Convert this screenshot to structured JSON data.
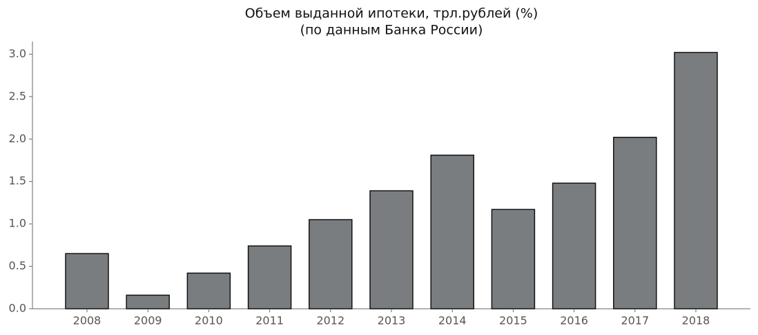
{
  "chart_data": {
    "type": "bar",
    "title": "Объем выданной ипотеки, трл.рублей (%)",
    "subtitle": "(по данным Банка России)",
    "categories": [
      "2008",
      "2009",
      "2010",
      "2011",
      "2012",
      "2013",
      "2014",
      "2015",
      "2016",
      "2017",
      "2018"
    ],
    "values": [
      0.65,
      0.16,
      0.42,
      0.74,
      1.05,
      1.39,
      1.81,
      1.17,
      1.48,
      2.02,
      3.02
    ],
    "color": "#7a7d80",
    "ylim": [
      0,
      3.15
    ],
    "yticks": [
      {
        "value": 0,
        "label": "0.0"
      },
      {
        "value": 0.5,
        "label": "0.5"
      },
      {
        "value": 1,
        "label": "1.0"
      },
      {
        "value": 1.5,
        "label": "1.5"
      },
      {
        "value": 2,
        "label": "2.0"
      },
      {
        "value": 2.5,
        "label": "2.5"
      },
      {
        "value": 3,
        "label": "3.0"
      }
    ],
    "grid": false
  }
}
